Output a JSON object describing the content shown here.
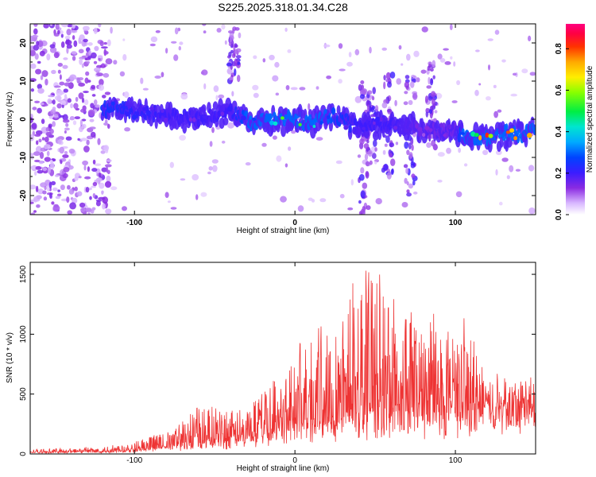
{
  "title": "S225.2025.318.01.34.C28",
  "chart_data": [
    {
      "type": "heatmap",
      "xlabel": "Height of straight line (km)",
      "ylabel": "Frequency (Hz)",
      "xlim": [
        -165,
        150
      ],
      "ylim": [
        -25,
        25
      ],
      "xticks": [
        -100,
        0,
        100
      ],
      "yticks": [
        -20,
        -10,
        0,
        10,
        20
      ],
      "colorbar": {
        "label": "Normalized spectral amplitude",
        "range": [
          0,
          0.92
        ],
        "ticks": [
          0.0,
          0.2,
          0.4,
          0.6,
          0.8
        ]
      },
      "ridge": {
        "x": [
          -120,
          -100,
          -80,
          -60,
          -40,
          -25,
          -10,
          0,
          10,
          20,
          40,
          60,
          80,
          100,
          110,
          120,
          130,
          140,
          150
        ],
        "freq": [
          3,
          2,
          1,
          0,
          2,
          -1,
          0,
          0,
          -1,
          1,
          -2,
          -1,
          -3,
          -3,
          -5,
          -5,
          -4,
          -4,
          -3
        ],
        "amplitude": [
          0.25,
          0.22,
          0.2,
          0.2,
          0.2,
          0.35,
          0.5,
          0.55,
          0.45,
          0.3,
          0.2,
          0.2,
          0.15,
          0.15,
          0.55,
          0.8,
          0.75,
          0.8,
          0.85
        ]
      }
    },
    {
      "type": "line",
      "xlabel": "Height of straight line (km)",
      "ylabel": "SNR (10 * v/v)",
      "xlim": [
        -165,
        150
      ],
      "ylim": [
        0,
        1600
      ],
      "xticks": [
        -100,
        0,
        100
      ],
      "yticks": [
        0,
        500,
        1000,
        1500
      ],
      "series": [
        {
          "name": "SNR",
          "color": "#ee3333",
          "envelope_x": [
            -165,
            -120,
            -100,
            -80,
            -60,
            -40,
            -30,
            -20,
            -10,
            0,
            20,
            40,
            60,
            80,
            100,
            110,
            120,
            150
          ],
          "envelope_base": [
            10,
            15,
            25,
            45,
            70,
            90,
            110,
            150,
            180,
            210,
            240,
            260,
            270,
            280,
            300,
            330,
            380,
            400
          ],
          "envelope_peak": [
            40,
            60,
            120,
            180,
            430,
            350,
            420,
            520,
            700,
            880,
            1150,
            1600,
            1350,
            1200,
            1230,
            1000,
            620,
            580
          ]
        }
      ]
    }
  ]
}
